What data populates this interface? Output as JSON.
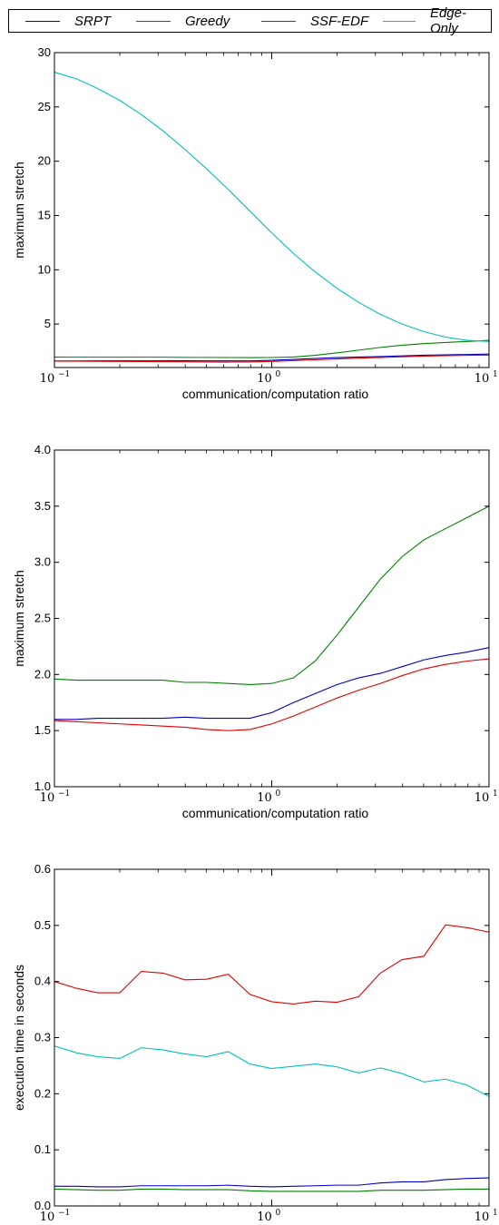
{
  "legend": {
    "items": [
      {
        "label": "SRPT",
        "color": "#0000bf"
      },
      {
        "label": "Greedy",
        "color": "#007f00"
      },
      {
        "label": "SSF-EDF",
        "color": "#e00000"
      },
      {
        "label": "Edge-Only",
        "color": "#00bfbf"
      }
    ]
  },
  "chart_data": [
    {
      "type": "line",
      "xscale": "log",
      "xlim": [
        0.1,
        10
      ],
      "ylim": [
        1,
        30
      ],
      "xticks": [
        {
          "value": 0.1,
          "base": "10",
          "exp": "−1"
        },
        {
          "value": 1,
          "base": "10",
          "exp": "0"
        },
        {
          "value": 10,
          "base": "10",
          "exp": "1"
        }
      ],
      "yticks": [
        {
          "value": 5,
          "label": "5"
        },
        {
          "value": 10,
          "label": "10"
        },
        {
          "value": 15,
          "label": "15"
        },
        {
          "value": 20,
          "label": "20"
        },
        {
          "value": 25,
          "label": "25"
        },
        {
          "value": 30,
          "label": "30"
        }
      ],
      "xlabel": "communication/computation ratio",
      "ylabel": "maximum stretch",
      "x": [
        0.1,
        0.126,
        0.158,
        0.2,
        0.251,
        0.316,
        0.398,
        0.501,
        0.631,
        0.794,
        1.0,
        1.259,
        1.585,
        1.995,
        2.512,
        3.162,
        3.981,
        5.012,
        6.31,
        7.943,
        10.0
      ],
      "series": [
        {
          "name": "SRPT",
          "color": "#0000bf",
          "values": [
            1.6,
            1.6,
            1.61,
            1.61,
            1.61,
            1.61,
            1.62,
            1.61,
            1.61,
            1.61,
            1.66,
            1.75,
            1.83,
            1.91,
            1.97,
            2.01,
            2.07,
            2.13,
            2.17,
            2.2,
            2.24
          ]
        },
        {
          "name": "Greedy",
          "color": "#007f00",
          "values": [
            1.96,
            1.95,
            1.95,
            1.95,
            1.95,
            1.95,
            1.93,
            1.93,
            1.92,
            1.91,
            1.92,
            1.97,
            2.12,
            2.35,
            2.6,
            2.85,
            3.05,
            3.2,
            3.3,
            3.4,
            3.5
          ]
        },
        {
          "name": "SSF-EDF",
          "color": "#e00000",
          "values": [
            1.59,
            1.58,
            1.57,
            1.56,
            1.55,
            1.54,
            1.53,
            1.51,
            1.5,
            1.51,
            1.56,
            1.63,
            1.71,
            1.79,
            1.86,
            1.92,
            1.99,
            2.05,
            2.09,
            2.12,
            2.14
          ]
        },
        {
          "name": "Edge-Only",
          "color": "#00bfbf",
          "values": [
            28.2,
            27.6,
            26.7,
            25.6,
            24.3,
            22.8,
            21.1,
            19.3,
            17.4,
            15.4,
            13.4,
            11.5,
            9.8,
            8.3,
            7.0,
            5.9,
            5.0,
            4.3,
            3.8,
            3.5,
            3.4
          ]
        }
      ]
    },
    {
      "type": "line",
      "xscale": "log",
      "xlim": [
        0.1,
        10
      ],
      "ylim": [
        1.0,
        4.0
      ],
      "xticks": [
        {
          "value": 0.1,
          "base": "10",
          "exp": "−1"
        },
        {
          "value": 1,
          "base": "10",
          "exp": "0"
        },
        {
          "value": 10,
          "base": "10",
          "exp": "1"
        }
      ],
      "yticks": [
        {
          "value": 1.0,
          "label": "1.0"
        },
        {
          "value": 1.5,
          "label": "1.5"
        },
        {
          "value": 2.0,
          "label": "2.0"
        },
        {
          "value": 2.5,
          "label": "2.5"
        },
        {
          "value": 3.0,
          "label": "3.0"
        },
        {
          "value": 3.5,
          "label": "3.5"
        },
        {
          "value": 4.0,
          "label": "4.0"
        }
      ],
      "xlabel": "communication/computation ratio",
      "ylabel": "maximum stretch",
      "x": [
        0.1,
        0.126,
        0.158,
        0.2,
        0.251,
        0.316,
        0.398,
        0.501,
        0.631,
        0.794,
        1.0,
        1.259,
        1.585,
        1.995,
        2.512,
        3.162,
        3.981,
        5.012,
        6.31,
        7.943,
        10.0
      ],
      "series": [
        {
          "name": "SRPT",
          "color": "#0000bf",
          "values": [
            1.6,
            1.6,
            1.61,
            1.61,
            1.61,
            1.61,
            1.62,
            1.61,
            1.61,
            1.61,
            1.66,
            1.75,
            1.83,
            1.91,
            1.97,
            2.01,
            2.07,
            2.13,
            2.17,
            2.2,
            2.24
          ]
        },
        {
          "name": "Greedy",
          "color": "#007f00",
          "values": [
            1.96,
            1.95,
            1.95,
            1.95,
            1.95,
            1.95,
            1.93,
            1.93,
            1.92,
            1.91,
            1.92,
            1.97,
            2.12,
            2.35,
            2.6,
            2.85,
            3.05,
            3.2,
            3.3,
            3.4,
            3.5
          ]
        },
        {
          "name": "SSF-EDF",
          "color": "#e00000",
          "values": [
            1.59,
            1.58,
            1.57,
            1.56,
            1.55,
            1.54,
            1.53,
            1.51,
            1.5,
            1.51,
            1.56,
            1.63,
            1.71,
            1.79,
            1.86,
            1.92,
            1.99,
            2.05,
            2.09,
            2.12,
            2.14
          ]
        }
      ]
    },
    {
      "type": "line",
      "xscale": "log",
      "xlim": [
        0.1,
        10
      ],
      "ylim": [
        0.0,
        0.6
      ],
      "xticks": [
        {
          "value": 0.1,
          "base": "10",
          "exp": "−1"
        },
        {
          "value": 1,
          "base": "10",
          "exp": "0"
        },
        {
          "value": 10,
          "base": "10",
          "exp": "1"
        }
      ],
      "yticks": [
        {
          "value": 0.0,
          "label": "0.0"
        },
        {
          "value": 0.1,
          "label": "0.1"
        },
        {
          "value": 0.2,
          "label": "0.2"
        },
        {
          "value": 0.3,
          "label": "0.3"
        },
        {
          "value": 0.4,
          "label": "0.4"
        },
        {
          "value": 0.5,
          "label": "0.5"
        },
        {
          "value": 0.6,
          "label": "0.6"
        }
      ],
      "xlabel": "communication/computation ratio",
      "ylabel": "execution time in seconds",
      "x": [
        0.1,
        0.126,
        0.158,
        0.2,
        0.251,
        0.316,
        0.398,
        0.501,
        0.631,
        0.794,
        1.0,
        1.259,
        1.585,
        1.995,
        2.512,
        3.162,
        3.981,
        5.012,
        6.31,
        7.943,
        10.0
      ],
      "series": [
        {
          "name": "SRPT",
          "color": "#0000bf",
          "values": [
            0.035,
            0.035,
            0.034,
            0.034,
            0.036,
            0.036,
            0.036,
            0.036,
            0.037,
            0.035,
            0.034,
            0.035,
            0.036,
            0.037,
            0.037,
            0.041,
            0.043,
            0.043,
            0.047,
            0.049,
            0.05
          ]
        },
        {
          "name": "Greedy",
          "color": "#007f00",
          "values": [
            0.03,
            0.029,
            0.028,
            0.028,
            0.03,
            0.03,
            0.029,
            0.029,
            0.029,
            0.027,
            0.026,
            0.026,
            0.026,
            0.026,
            0.026,
            0.028,
            0.028,
            0.028,
            0.029,
            0.03,
            0.03
          ]
        },
        {
          "name": "SSF-EDF",
          "color": "#e00000",
          "values": [
            0.4,
            0.388,
            0.38,
            0.38,
            0.418,
            0.415,
            0.403,
            0.404,
            0.413,
            0.377,
            0.364,
            0.36,
            0.365,
            0.363,
            0.373,
            0.415,
            0.439,
            0.445,
            0.501,
            0.496,
            0.488
          ]
        },
        {
          "name": "Edge-Only",
          "color": "#00bfbf",
          "values": [
            0.285,
            0.273,
            0.266,
            0.263,
            0.282,
            0.278,
            0.271,
            0.266,
            0.275,
            0.253,
            0.245,
            0.249,
            0.253,
            0.248,
            0.237,
            0.246,
            0.236,
            0.221,
            0.226,
            0.215,
            0.195
          ]
        }
      ]
    }
  ]
}
